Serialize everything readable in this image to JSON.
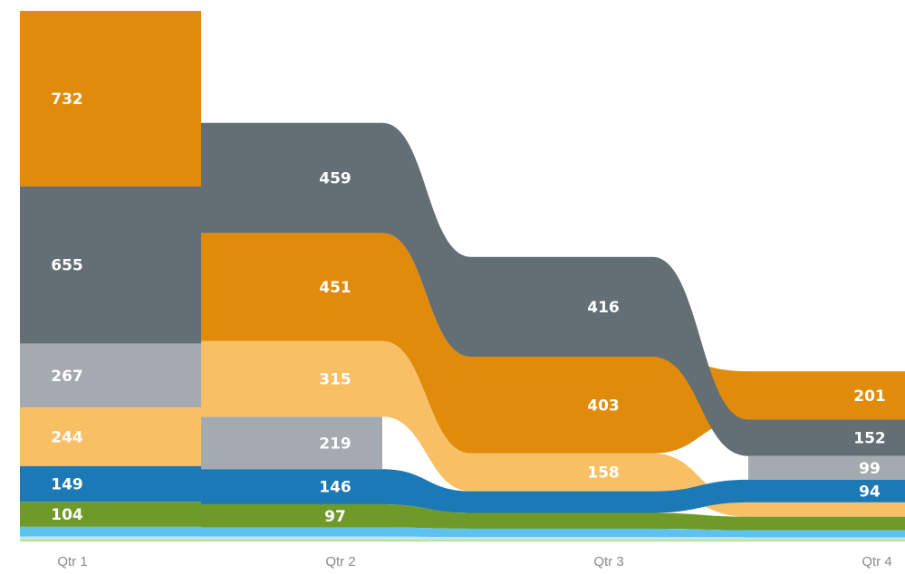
{
  "chart_data": {
    "type": "ribbon",
    "categories": [
      "Qtr 1",
      "Qtr 2",
      "Qtr 3",
      "Qtr 4"
    ],
    "series": [
      {
        "color": "#e08b0b",
        "values": [
          732,
          451,
          403,
          201
        ]
      },
      {
        "color": "#636e75",
        "values": [
          655,
          459,
          416,
          152
        ]
      },
      {
        "color": "#a4aab0",
        "values": [
          267,
          219,
          null,
          99
        ]
      },
      {
        "color": "#f8bf65",
        "values": [
          244,
          315,
          158,
          60
        ]
      },
      {
        "color": "#1b7ab5",
        "values": [
          149,
          146,
          90,
          94
        ]
      },
      {
        "color": "#6f9a2a",
        "values": [
          104,
          97,
          66,
          56
        ]
      },
      {
        "color": "#5ec2ee",
        "values": [
          40,
          38,
          35,
          30
        ]
      },
      {
        "color": "#bde6f7",
        "values": [
          14,
          13,
          12,
          11
        ]
      },
      {
        "color": "#b6dc7a",
        "values": [
          7,
          7,
          6,
          6
        ]
      }
    ],
    "printed_labels": [
      [
        "732",
        "459",
        "416",
        "201"
      ],
      [
        "655",
        "451",
        "403",
        "152"
      ],
      [
        "267",
        "315",
        "158",
        "99"
      ],
      [
        "244",
        "219",
        "",
        "94"
      ],
      [
        "149",
        "146",
        "",
        ""
      ],
      [
        "104",
        "97",
        "",
        ""
      ]
    ],
    "sort": "descending per category",
    "grid": false,
    "legend": "none"
  }
}
